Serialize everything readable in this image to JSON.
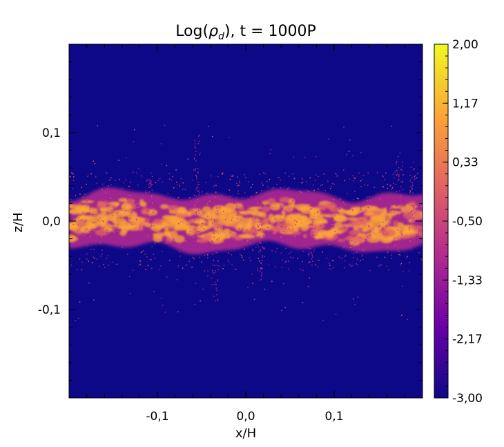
{
  "chart_data": {
    "type": "heatmap",
    "title": "Log(ρ_d), t = 1000P",
    "title_parts": {
      "prefix": "Log(",
      "rho": "ρ",
      "sub": "d",
      "suffix": "), t = 1000P"
    },
    "xlabel": "x/H",
    "ylabel": "z/H",
    "xlim": [
      -0.2,
      0.2
    ],
    "ylim": [
      -0.2,
      0.2
    ],
    "x_ticks": [
      -0.1,
      0.0,
      0.1
    ],
    "x_tick_labels": [
      "-0,1",
      "0,0",
      "0,1"
    ],
    "y_ticks": [
      0.1,
      0.0,
      -0.1
    ],
    "y_tick_labels": [
      "0,1",
      "0,0",
      "-0,1"
    ],
    "colorbar": {
      "range": [
        -3.0,
        2.0
      ],
      "tick_labels": [
        "2,00",
        "1,17",
        "0,33",
        "-0,50",
        "-1,33",
        "-2,17",
        "-3,00"
      ],
      "colormap": [
        "#0d0887",
        "#6a00a8",
        "#b12a90",
        "#e16462",
        "#fca636",
        "#f0f921"
      ]
    },
    "background_value": -3.0,
    "dust_layer": {
      "center_z": 0.0,
      "half_thickness_z": 0.035,
      "peak_value": 1.0,
      "description": "turbulent dense dust sublayer around midplane"
    }
  }
}
